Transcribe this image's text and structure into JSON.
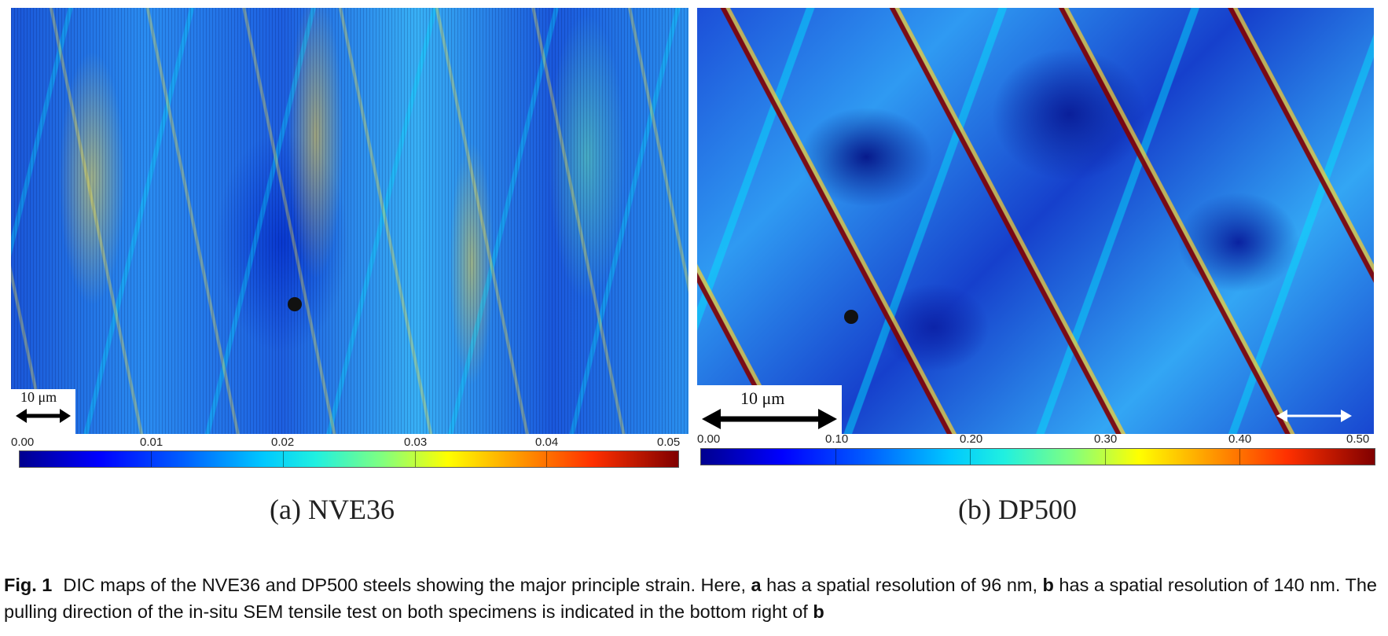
{
  "panels": [
    {
      "id": "a",
      "subcaption": "(a) NVE36",
      "scale_bar_label": "10 μm",
      "colorbar_ticks": [
        "0.00",
        "0.01",
        "0.02",
        "0.03",
        "0.04",
        "0.05"
      ],
      "colorbar_range": [
        0.0,
        0.05
      ]
    },
    {
      "id": "b",
      "subcaption": "(b) DP500",
      "scale_bar_label": "10 μm",
      "colorbar_ticks": [
        "0.00",
        "0.10",
        "0.20",
        "0.30",
        "0.40",
        "0.50"
      ],
      "colorbar_range": [
        0.0,
        0.5
      ]
    }
  ],
  "colormap": [
    "#00008f",
    "#0000ff",
    "#0060ff",
    "#00c8ff",
    "#80ff80",
    "#ffff00",
    "#ffa000",
    "#ff3000",
    "#800000"
  ],
  "caption": {
    "label": "Fig. 1",
    "text_1": "DIC maps of the NVE36 and DP500 steels showing the major principle strain. Here, ",
    "ref_a": "a",
    "text_2": " has a spatial resolution of 96 nm, ",
    "ref_b": "b",
    "text_3": " has a spatial resolution of 140 nm. The pulling direction of the in-situ SEM tensile test on both specimens is indicated in the bottom right of ",
    "ref_b_end": "b"
  }
}
